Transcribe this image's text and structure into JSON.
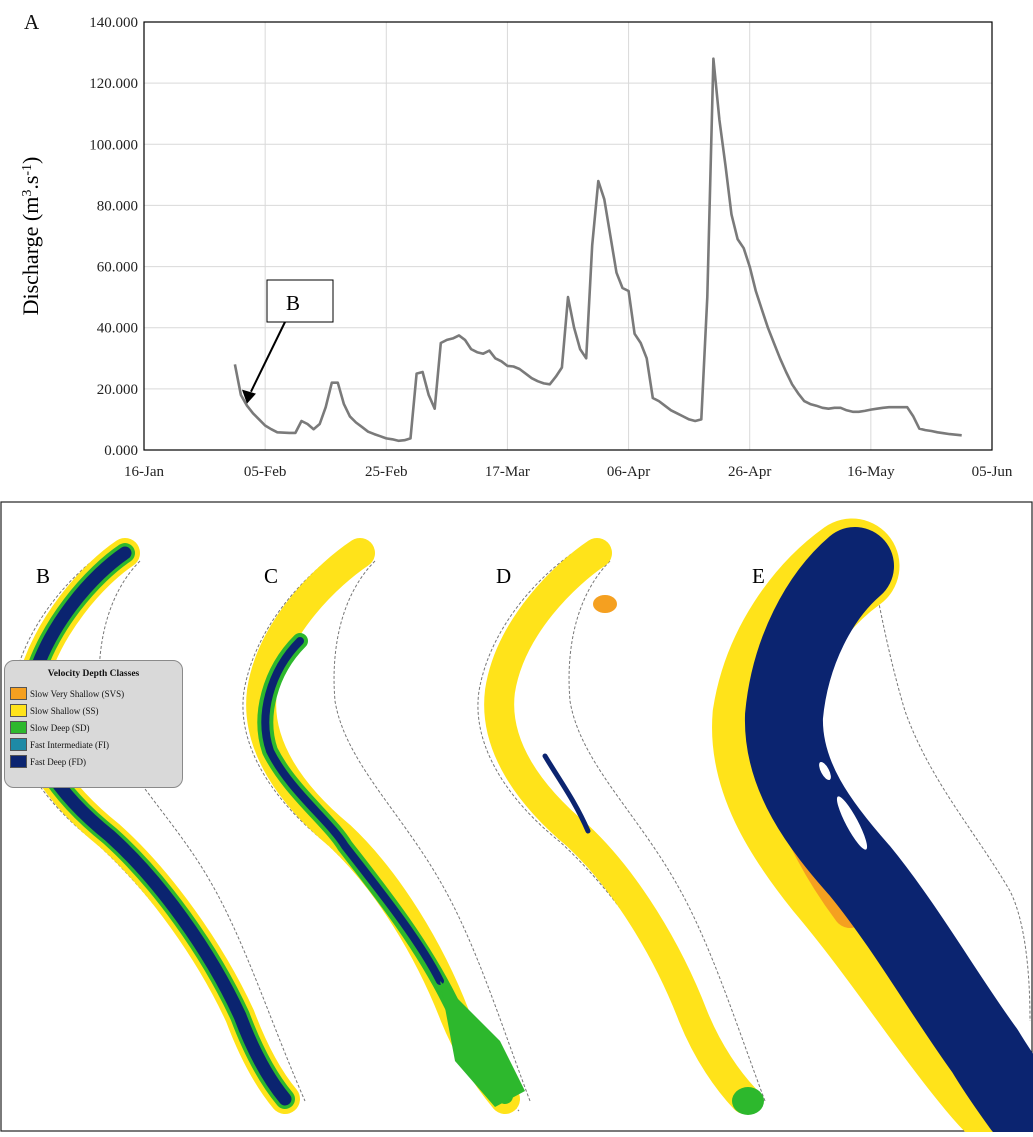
{
  "chart_data": {
    "type": "line",
    "panel_label": "A",
    "ylabel": "Discharge (m³.s⁻¹)",
    "ylabel_parts": {
      "base": "Discharge (m",
      "sup1": "3",
      "mid": ".s",
      "sup2": "-1",
      "end": ")"
    },
    "xlabel": "",
    "ylim": [
      0,
      140
    ],
    "xlim": [
      "2015-01-16",
      "2015-06-05"
    ],
    "y_ticks": [
      "0.000",
      "20.000",
      "40.000",
      "60.000",
      "80.000",
      "100.000",
      "120.000",
      "140.000"
    ],
    "y_tick_values": [
      0,
      20,
      40,
      60,
      80,
      100,
      120,
      140
    ],
    "x_ticks": [
      "16-Jan",
      "05-Feb",
      "25-Feb",
      "17-Mar",
      "06-Apr",
      "26-Apr",
      "16-May",
      "05-Jun"
    ],
    "x_tick_dates": [
      "2015-01-16",
      "2015-02-05",
      "2015-02-25",
      "2015-03-17",
      "2015-04-06",
      "2015-04-26",
      "2015-05-16",
      "2015-06-05"
    ],
    "grid": true,
    "series_color": "#7a7a7a",
    "annotation": {
      "label": "B",
      "date": "2015-02-02",
      "value": 14.5
    },
    "series": [
      {
        "x": [
          "2015-01-31",
          "2015-02-01",
          "2015-02-02",
          "2015-02-03",
          "2015-02-04",
          "2015-02-05",
          "2015-02-06",
          "2015-02-07",
          "2015-02-09",
          "2015-02-10",
          "2015-02-11",
          "2015-02-12",
          "2015-02-13",
          "2015-02-14",
          "2015-02-15",
          "2015-02-16",
          "2015-02-17",
          "2015-02-18",
          "2015-02-19",
          "2015-02-20",
          "2015-02-21",
          "2015-02-22",
          "2015-02-23",
          "2015-02-24",
          "2015-02-25",
          "2015-02-26",
          "2015-02-27",
          "2015-02-28",
          "2015-03-01",
          "2015-03-02",
          "2015-03-03",
          "2015-03-04",
          "2015-03-05",
          "2015-03-06",
          "2015-03-07",
          "2015-03-08",
          "2015-03-09",
          "2015-03-10",
          "2015-03-11",
          "2015-03-12",
          "2015-03-13",
          "2015-03-14",
          "2015-03-15",
          "2015-03-16",
          "2015-03-17",
          "2015-03-18",
          "2015-03-19",
          "2015-03-20",
          "2015-03-21",
          "2015-03-22",
          "2015-03-23",
          "2015-03-24",
          "2015-03-25",
          "2015-03-26",
          "2015-03-27",
          "2015-03-28",
          "2015-03-29",
          "2015-03-30",
          "2015-03-31",
          "2015-04-01",
          "2015-04-02",
          "2015-04-03",
          "2015-04-04",
          "2015-04-05",
          "2015-04-06",
          "2015-04-07",
          "2015-04-08",
          "2015-04-09",
          "2015-04-10",
          "2015-04-11",
          "2015-04-12",
          "2015-04-13",
          "2015-04-14",
          "2015-04-15",
          "2015-04-16",
          "2015-04-17",
          "2015-04-18",
          "2015-04-19",
          "2015-04-20",
          "2015-04-21",
          "2015-04-22",
          "2015-04-23",
          "2015-04-24",
          "2015-04-25",
          "2015-04-26",
          "2015-04-27",
          "2015-04-28",
          "2015-04-29",
          "2015-04-30",
          "2015-05-01",
          "2015-05-02",
          "2015-05-03",
          "2015-05-04",
          "2015-05-05",
          "2015-05-06",
          "2015-05-07",
          "2015-05-08",
          "2015-05-09",
          "2015-05-10",
          "2015-05-11",
          "2015-05-12",
          "2015-05-13",
          "2015-05-14",
          "2015-05-15",
          "2015-05-16",
          "2015-05-17",
          "2015-05-18",
          "2015-05-19",
          "2015-05-20",
          "2015-05-21",
          "2015-05-22",
          "2015-05-23",
          "2015-05-24",
          "2015-05-25",
          "2015-05-26",
          "2015-05-27",
          "2015-05-28",
          "2015-05-29",
          "2015-05-30",
          "2015-05-31"
        ],
        "y": [
          28,
          18,
          14.5,
          12,
          10,
          8,
          6.8,
          5.8,
          5.6,
          5.6,
          9.5,
          8.5,
          6.8,
          8.5,
          14,
          22,
          22,
          15,
          11,
          9,
          7.5,
          6,
          5.2,
          4.5,
          3.8,
          3.5,
          3,
          3.2,
          3.8,
          25,
          25.5,
          18,
          13.5,
          35,
          36,
          36.5,
          37.5,
          36,
          33,
          32,
          31.5,
          32.5,
          30,
          29,
          27.5,
          27.3,
          26.5,
          25,
          23.5,
          22.5,
          21.8,
          21.5,
          24,
          27,
          50,
          40,
          33,
          30,
          67,
          88,
          82,
          70,
          58,
          53,
          52,
          38,
          35,
          30,
          17,
          16,
          14.5,
          13,
          12,
          11,
          10,
          9.5,
          10,
          50,
          128,
          108,
          93,
          77,
          69,
          66,
          60,
          52,
          46,
          40,
          35,
          30,
          25.5,
          21.5,
          18.5,
          16,
          15,
          14.5,
          13.8,
          13.5,
          13.8,
          13.8,
          13,
          12.5,
          12.5,
          12.8,
          13.2,
          13.5,
          13.8,
          14,
          14,
          14,
          14,
          11,
          7,
          6.5,
          6.2,
          5.8,
          5.5,
          5.2,
          5,
          4.8
        ]
      }
    ]
  },
  "maps": {
    "panels": [
      {
        "label": "B"
      },
      {
        "label": "C"
      },
      {
        "label": "D"
      },
      {
        "label": "E"
      }
    ],
    "legend": {
      "title": "Velocity Depth Classes",
      "items": [
        {
          "label": "Slow Very Shallow (SVS)",
          "color": "#f5a020"
        },
        {
          "label": "Slow Shallow (SS)",
          "color": "#ffe31a"
        },
        {
          "label": "Slow Deep (SD)",
          "color": "#2db82d"
        },
        {
          "label": "Fast Intermediate (FI)",
          "color": "#1e8aa6"
        },
        {
          "label": "Fast Deep (FD)",
          "color": "#0b2470"
        }
      ]
    }
  }
}
